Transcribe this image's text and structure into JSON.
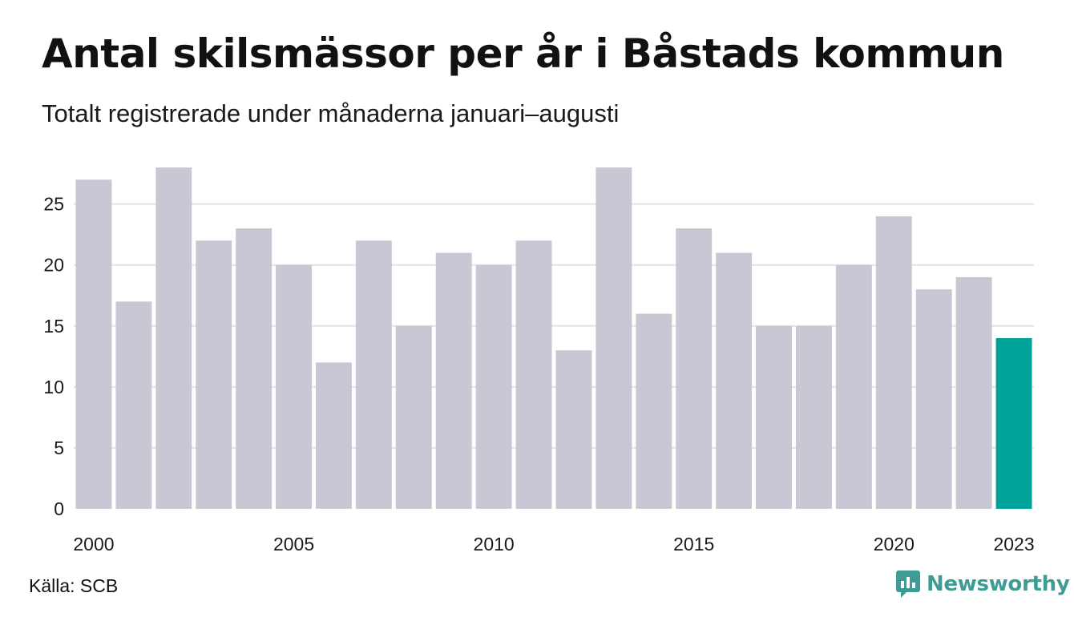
{
  "header": {
    "title": "Antal skilsmässor per år i Båstads kommun",
    "subtitle": "Totalt registrerade under månaderna januari–augusti"
  },
  "footer": {
    "source": "Källa: SCB",
    "brand": "Newsworthy"
  },
  "colors": {
    "bar": "#c9c7d3",
    "highlight": "#00a39a",
    "grid": "#e3e3e3",
    "brand": "#3e9c95"
  },
  "chart_data": {
    "type": "bar",
    "title": "Antal skilsmässor per år i Båstads kommun",
    "subtitle": "Totalt registrerade under månaderna januari–augusti",
    "categories": [
      "2000",
      "2001",
      "2002",
      "2003",
      "2004",
      "2005",
      "2006",
      "2007",
      "2008",
      "2009",
      "2010",
      "2011",
      "2012",
      "2013",
      "2014",
      "2015",
      "2016",
      "2017",
      "2018",
      "2019",
      "2020",
      "2021",
      "2022",
      "2023"
    ],
    "values": [
      27,
      17,
      28,
      22,
      23,
      20,
      12,
      22,
      15,
      21,
      20,
      22,
      13,
      28,
      16,
      23,
      21,
      15,
      15,
      20,
      24,
      18,
      19,
      14
    ],
    "highlight_category": "2023",
    "x_tick_labels": [
      "2000",
      "2005",
      "2010",
      "2015",
      "2020",
      "2023"
    ],
    "y_ticks": [
      0,
      5,
      10,
      15,
      20,
      25
    ],
    "ylim": [
      0,
      28
    ],
    "xlabel": "",
    "ylabel": "",
    "grid": true,
    "legend": "none"
  }
}
